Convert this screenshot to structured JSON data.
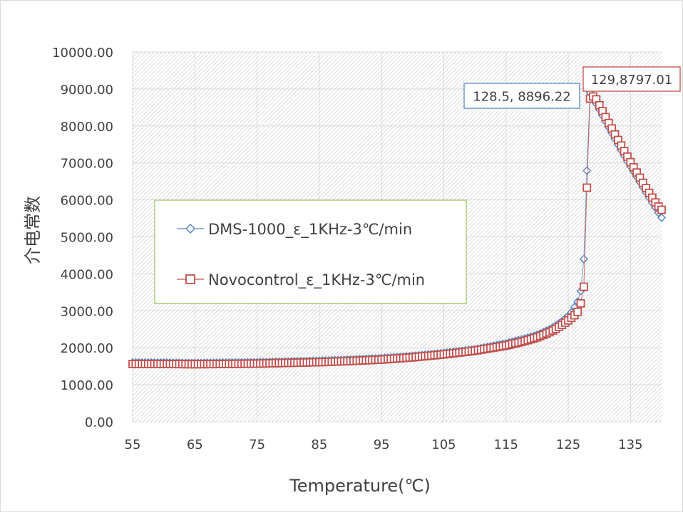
{
  "chart_data": {
    "type": "scatter",
    "title": "",
    "xlabel": "Temperature(℃)",
    "ylabel": "介电常数",
    "xlim": [
      55,
      140
    ],
    "ylim": [
      0,
      10000
    ],
    "x_ticks": [
      "55",
      "65",
      "75",
      "85",
      "95",
      "105",
      "115",
      "125",
      "135"
    ],
    "y_ticks": [
      "0.00",
      "1000.00",
      "2000.00",
      "3000.00",
      "4000.00",
      "5000.00",
      "6000.00",
      "7000.00",
      "8000.00",
      "9000.00",
      "10000.00"
    ],
    "grid": true,
    "legend_position": "center-left",
    "series": [
      {
        "name": "DMS-1000_ε_1KHz-3℃/min",
        "color": "#5b87c0",
        "marker": "diamond",
        "points": [
          [
            55,
            1600
          ],
          [
            60,
            1600
          ],
          [
            65,
            1590
          ],
          [
            70,
            1600
          ],
          [
            75,
            1610
          ],
          [
            80,
            1630
          ],
          [
            85,
            1650
          ],
          [
            90,
            1680
          ],
          [
            95,
            1720
          ],
          [
            100,
            1780
          ],
          [
            105,
            1860
          ],
          [
            110,
            1960
          ],
          [
            115,
            2120
          ],
          [
            118,
            2250
          ],
          [
            120,
            2350
          ],
          [
            122,
            2500
          ],
          [
            123,
            2600
          ],
          [
            124,
            2720
          ],
          [
            125,
            2860
          ],
          [
            125.5,
            2960
          ],
          [
            126,
            3100
          ],
          [
            126.5,
            3250
          ],
          [
            127,
            3530
          ],
          [
            127.5,
            4400
          ],
          [
            128,
            6790
          ],
          [
            128.5,
            8896.22
          ],
          [
            129,
            8780
          ],
          [
            129.5,
            8600
          ],
          [
            130,
            8440
          ],
          [
            130.5,
            8280
          ],
          [
            131,
            8120
          ],
          [
            131.5,
            7960
          ],
          [
            132,
            7800
          ],
          [
            132.5,
            7650
          ],
          [
            133,
            7490
          ],
          [
            133.5,
            7340
          ],
          [
            134,
            7190
          ],
          [
            134.5,
            7040
          ],
          [
            135,
            6900
          ],
          [
            135.5,
            6760
          ],
          [
            136,
            6620
          ],
          [
            136.5,
            6480
          ],
          [
            137,
            6340
          ],
          [
            137.5,
            6200
          ],
          [
            138,
            6060
          ],
          [
            138.5,
            5920
          ],
          [
            139,
            5790
          ],
          [
            139.5,
            5650
          ],
          [
            140,
            5520
          ]
        ]
      },
      {
        "name": "Novocontrol_ε_1KHz-3℃/min",
        "color": "#c0504d",
        "marker": "square",
        "points": [
          [
            55,
            1560
          ],
          [
            60,
            1560
          ],
          [
            65,
            1555
          ],
          [
            70,
            1560
          ],
          [
            75,
            1570
          ],
          [
            80,
            1590
          ],
          [
            85,
            1610
          ],
          [
            90,
            1640
          ],
          [
            95,
            1680
          ],
          [
            100,
            1740
          ],
          [
            105,
            1820
          ],
          [
            110,
            1920
          ],
          [
            115,
            2060
          ],
          [
            118,
            2180
          ],
          [
            120,
            2280
          ],
          [
            122,
            2420
          ],
          [
            123,
            2510
          ],
          [
            124,
            2620
          ],
          [
            125,
            2740
          ],
          [
            125.5,
            2810
          ],
          [
            126,
            2880
          ],
          [
            126.5,
            2970
          ],
          [
            127,
            3200
          ],
          [
            127.5,
            3650
          ],
          [
            128,
            6330
          ],
          [
            128.5,
            8740
          ],
          [
            129,
            8797.01
          ],
          [
            129.5,
            8720
          ],
          [
            130,
            8560
          ],
          [
            130.5,
            8400
          ],
          [
            131,
            8240
          ],
          [
            131.5,
            8080
          ],
          [
            132,
            7930
          ],
          [
            132.5,
            7770
          ],
          [
            133,
            7620
          ],
          [
            133.5,
            7470
          ],
          [
            134,
            7320
          ],
          [
            134.5,
            7170
          ],
          [
            135,
            7020
          ],
          [
            135.5,
            6880
          ],
          [
            136,
            6740
          ],
          [
            136.5,
            6600
          ],
          [
            137,
            6460
          ],
          [
            137.5,
            6320
          ],
          [
            138,
            6190
          ],
          [
            138.5,
            6060
          ],
          [
            139,
            5930
          ],
          [
            139.5,
            5820
          ],
          [
            140,
            5730
          ]
        ]
      }
    ],
    "annotations": [
      {
        "text": "128.5, 8896.22",
        "series": 0,
        "x": 128.5,
        "y": 8896.22,
        "border_color": "#5b87c0"
      },
      {
        "text": "129,8797.01",
        "series": 1,
        "x": 129,
        "y": 8797.01,
        "border_color": "#c0504d"
      }
    ]
  }
}
